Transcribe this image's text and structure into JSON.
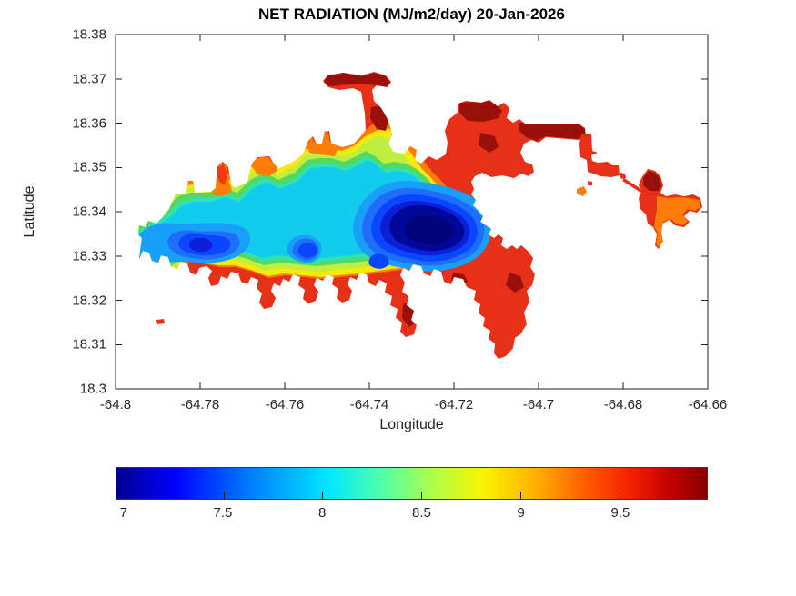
{
  "title": "NET RADIATION (MJ/m2/day) 20-Jan-2026",
  "axes": {
    "x": {
      "label": "Longitude",
      "tick_labels": [
        "-64.8",
        "-64.78",
        "-64.76",
        "-64.74",
        "-64.72",
        "-64.7",
        "-64.68",
        "-64.66"
      ]
    },
    "y": {
      "label": "Latitude",
      "tick_labels": [
        "18.38",
        "18.37",
        "18.36",
        "18.35",
        "18.34",
        "18.33",
        "18.32",
        "18.31",
        "18.3"
      ]
    }
  },
  "colorbar": {
    "orientation": "horizontal",
    "tick_labels": [
      "7",
      "7.5",
      "8",
      "8.5",
      "9",
      "9.5"
    ],
    "tick_values": [
      7,
      7.5,
      8,
      8.5,
      9,
      9.5
    ],
    "value_range": [
      6.96,
      9.94
    ]
  },
  "palette": {
    "bands": {
      "red": "#e63118",
      "darkred": "#990f0a",
      "orange": "#fd7d08",
      "yellow": "#f6ea0c",
      "yellowgreen": "#bfee3e",
      "green": "#55d860",
      "aqua": "#2fe2ae",
      "cyan": "#12ccee",
      "sky": "#18a0f8",
      "lightblue": "#1e6ef8",
      "blue": "#0a46ff",
      "deepblue": "#0b1ed8",
      "navy": "#000799",
      "darknavy": "#020378",
      "redbump": "#ef3b14"
    },
    "colorbar_gradient": [
      [
        "#00008f",
        0
      ],
      [
        "#0000ff",
        10
      ],
      [
        "#0080ff",
        23
      ],
      [
        "#00e8ff",
        36
      ],
      [
        "#50ffa8",
        45
      ],
      [
        "#a8ff50",
        53
      ],
      [
        "#f8f500",
        62
      ],
      [
        "#ffb000",
        71
      ],
      [
        "#ff6000",
        79
      ],
      [
        "#f52000",
        87
      ],
      [
        "#c00000",
        94
      ],
      [
        "#860000",
        100
      ]
    ]
  },
  "chart_data": {
    "type": "heatmap",
    "subtype": "filled-contour-map",
    "title": "NET RADIATION (MJ/m2/day) 20-Jan-2026",
    "xlabel": "Longitude",
    "ylabel": "Latitude",
    "xlim": [
      -64.8,
      -64.66
    ],
    "ylim": [
      18.3,
      18.38
    ],
    "xticks": [
      -64.8,
      -64.78,
      -64.76,
      -64.74,
      -64.72,
      -64.7,
      -64.68,
      -64.66
    ],
    "yticks": [
      18.3,
      18.31,
      18.32,
      18.33,
      18.34,
      18.35,
      18.36,
      18.37,
      18.38
    ],
    "grid": false,
    "colormap": "jet",
    "colorbar_ticks": [
      7,
      7.5,
      8,
      8.5,
      9,
      9.5
    ],
    "value_range_MJ_m2_day": [
      6.96,
      9.94
    ],
    "region_note": "Filled contours over an island landmass; white area is ocean / no data",
    "features": [
      {
        "name": "minimum net radiation",
        "value": 7.0,
        "lon": -64.727,
        "lat": 18.336
      },
      {
        "name": "interior low zone (7-8)",
        "extent": "central and western interior, lon -64.79 to -64.72, lat 18.33 to 18.345"
      },
      {
        "name": "secondary low pocket (7.3)",
        "lon": -64.782,
        "lat": 18.333
      },
      {
        "name": "coastal fringe high (9-9.7)",
        "extent": "southern and northern coastlines"
      },
      {
        "name": "maximum net radiation (~9.9)",
        "extent": "northeastern lobes and eastern peninsulas, lon -64.73 to -64.66, lat 18.34 to 18.37"
      }
    ]
  }
}
